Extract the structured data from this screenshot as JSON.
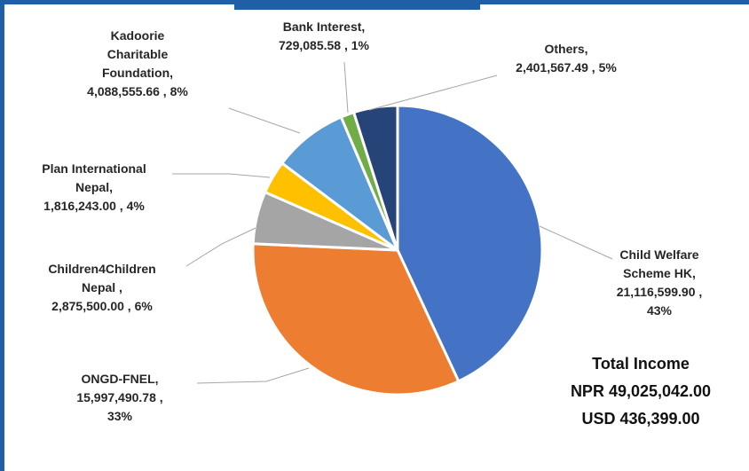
{
  "chart_data": {
    "type": "pie",
    "slices": [
      {
        "label_lines": [
          "Child Welfare",
          "Scheme HK,",
          "21,116,599.90 ,",
          "43%"
        ],
        "value": 21116599.9,
        "percent": "43%",
        "color": "#4472c4"
      },
      {
        "label_lines": [
          "ONGD-FNEL,",
          "15,997,490.78 ,",
          "33%"
        ],
        "value": 15997490.78,
        "percent": "33%",
        "color": "#ed7d31"
      },
      {
        "label_lines": [
          "Children4Children",
          "Nepal ,",
          "2,875,500.00 , 6%"
        ],
        "value": 2875500.0,
        "percent": "6%",
        "color": "#a5a5a5"
      },
      {
        "label_lines": [
          "Plan International",
          "Nepal,",
          "1,816,243.00 , 4%"
        ],
        "value": 1816243.0,
        "percent": "4%",
        "color": "#ffc000"
      },
      {
        "label_lines": [
          "Kadoorie",
          "Charitable",
          "Foundation,",
          "4,088,555.66 , 8%"
        ],
        "value": 4088555.66,
        "percent": "8%",
        "color": "#5b9bd5"
      },
      {
        "label_lines": [
          "Bank Interest,",
          "729,085.58 , 1%"
        ],
        "value": 729085.58,
        "percent": "1%",
        "color": "#70ad47"
      },
      {
        "label_lines": [
          "Others,",
          "2,401,567.49 , 5%"
        ],
        "value": 2401567.49,
        "percent": "5%",
        "color": "#264478"
      }
    ],
    "title": "",
    "legend": "none"
  },
  "total": {
    "heading": "Total Income",
    "npr": "NPR 49,025,042.00",
    "usd": "USD 436,399.00"
  },
  "colors": {
    "frame": "#1f5fa8",
    "leader_line": "#a6a6a6",
    "label_text": "#262626"
  }
}
